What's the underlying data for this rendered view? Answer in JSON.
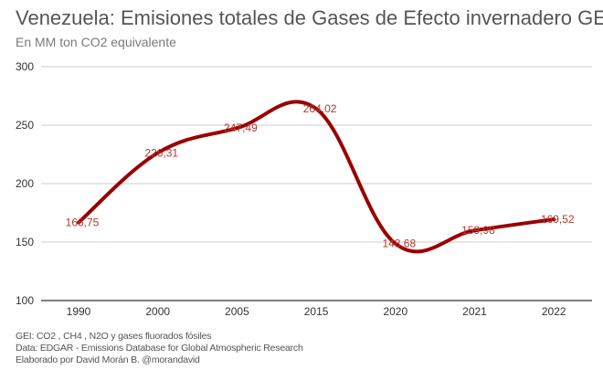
{
  "chart_data": {
    "type": "line",
    "title": "Venezuela: Emisiones totales de Gases de Efecto invernadero GEI",
    "subtitle": "En MM ton CO2 equivalente",
    "categories": [
      "1990",
      "2000",
      "2005",
      "2015",
      "2020",
      "2021",
      "2022"
    ],
    "series": [
      {
        "values": [
          166.75,
          226.31,
          247.49,
          264.02,
          148.68,
          159.98,
          169.52
        ],
        "labels": [
          "166,75",
          "226,31",
          "247,49",
          "264,02",
          "148,68",
          "159,98",
          "169,52"
        ],
        "color": "#990000"
      }
    ],
    "yticks": [
      "300",
      "250",
      "200",
      "150",
      "100"
    ],
    "ylim": [
      100,
      300
    ],
    "grid": true,
    "smooth": true
  },
  "footnotes": {
    "line1": "GEI: CO2 , CH4 , N2O y gases fluorados fósiles",
    "line2": "Data: EDGAR - Emissions Database for Global Atmospheric Research",
    "line3": "Elaborado por David Morán B. @morandavid"
  }
}
